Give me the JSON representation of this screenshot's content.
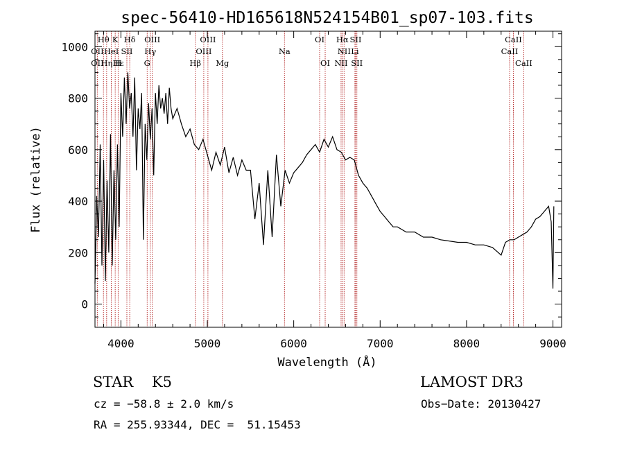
{
  "chart_data": {
    "type": "line",
    "title": "spec-56410-HD165618N524154B01_sp07-103.fits",
    "xlabel": "Wavelength (Å)",
    "ylabel": "Flux (relative)",
    "xlim": [
      3700,
      9100
    ],
    "ylim": [
      -90,
      1060
    ],
    "xticks": [
      4000,
      5000,
      6000,
      7000,
      8000,
      9000
    ],
    "xtick_labels": [
      "4000",
      "5000",
      "6000",
      "7000",
      "8000",
      "9000"
    ],
    "yticks": [
      0,
      200,
      400,
      600,
      800,
      1000
    ],
    "ytick_labels": [
      "0",
      "200",
      "400",
      "600",
      "800",
      "1000"
    ],
    "grid": false,
    "series": [
      {
        "color": "#000000",
        "x": [
          3700,
          3720,
          3740,
          3760,
          3780,
          3800,
          3820,
          3840,
          3860,
          3880,
          3900,
          3920,
          3940,
          3960,
          3980,
          4000,
          4020,
          4040,
          4060,
          4080,
          4100,
          4120,
          4140,
          4160,
          4180,
          4200,
          4220,
          4240,
          4260,
          4280,
          4300,
          4320,
          4340,
          4360,
          4380,
          4400,
          4420,
          4440,
          4460,
          4480,
          4500,
          4520,
          4540,
          4560,
          4580,
          4600,
          4650,
          4700,
          4750,
          4800,
          4850,
          4900,
          4950,
          5000,
          5050,
          5100,
          5150,
          5200,
          5250,
          5300,
          5350,
          5400,
          5450,
          5500,
          5550,
          5600,
          5650,
          5700,
          5750,
          5800,
          5850,
          5900,
          5950,
          6000,
          6050,
          6100,
          6150,
          6200,
          6250,
          6300,
          6350,
          6400,
          6450,
          6500,
          6550,
          6600,
          6650,
          6700,
          6750,
          6800,
          6850,
          6900,
          6950,
          7000,
          7050,
          7100,
          7150,
          7200,
          7250,
          7300,
          7400,
          7500,
          7600,
          7700,
          7800,
          7900,
          8000,
          8100,
          8200,
          8300,
          8400,
          8450,
          8500,
          8550,
          8600,
          8650,
          8700,
          8750,
          8800,
          8850,
          8900,
          8950,
          8980,
          9000,
          9010
        ],
        "y": [
          80,
          420,
          260,
          620,
          150,
          560,
          90,
          480,
          200,
          660,
          150,
          520,
          250,
          620,
          300,
          820,
          650,
          880,
          700,
          900,
          760,
          820,
          650,
          880,
          520,
          760,
          680,
          820,
          250,
          700,
          560,
          780,
          640,
          760,
          500,
          820,
          700,
          850,
          760,
          800,
          740,
          820,
          700,
          840,
          760,
          720,
          760,
          700,
          650,
          680,
          620,
          600,
          640,
          580,
          520,
          590,
          540,
          610,
          510,
          570,
          500,
          560,
          520,
          520,
          330,
          470,
          230,
          520,
          260,
          580,
          380,
          520,
          470,
          510,
          530,
          550,
          580,
          600,
          620,
          590,
          640,
          610,
          650,
          600,
          590,
          560,
          570,
          560,
          500,
          470,
          450,
          420,
          390,
          360,
          340,
          320,
          300,
          300,
          290,
          280,
          280,
          260,
          260,
          250,
          245,
          240,
          240,
          230,
          230,
          220,
          190,
          240,
          250,
          250,
          260,
          270,
          280,
          300,
          330,
          340,
          360,
          380,
          320,
          60,
          380
        ]
      }
    ],
    "annotations": [
      {
        "text": "Hθ",
        "x": 3798
      },
      {
        "text": "K",
        "x": 3934
      },
      {
        "text": "Hδ",
        "x": 4102
      },
      {
        "text": "OIII",
        "x": 4363
      },
      {
        "text": "OIII",
        "x": 5007
      },
      {
        "text": "OI",
        "x": 6300
      },
      {
        "text": "Hα",
        "x": 6563
      },
      {
        "text": "SII",
        "x": 6717
      },
      {
        "text": "CaII",
        "x": 8542
      },
      {
        "text": "OII",
        "x": 3727
      },
      {
        "text": "HeI",
        "x": 3889
      },
      {
        "text": "SII",
        "x": 4069
      },
      {
        "text": "Hγ",
        "x": 4340
      },
      {
        "text": "OIII",
        "x": 4959
      },
      {
        "text": "Na",
        "x": 5893
      },
      {
        "text": "NII",
        "x": 6583
      },
      {
        "text": "Li",
        "x": 6708
      },
      {
        "text": "CaII",
        "x": 8498
      },
      {
        "text": "OII",
        "x": 3727
      },
      {
        "text": "Hε",
        "x": 3970
      },
      {
        "text": "Hη",
        "x": 3835
      },
      {
        "text": "H",
        "x": 3968
      },
      {
        "text": "G",
        "x": 4304
      },
      {
        "text": "Hβ",
        "x": 4861
      },
      {
        "text": "Mg",
        "x": 5175
      },
      {
        "text": "OI",
        "x": 6364
      },
      {
        "text": "NII",
        "x": 6548
      },
      {
        "text": "SII",
        "x": 6731
      },
      {
        "text": "CaII",
        "x": 8662
      }
    ],
    "line_markers": [
      3727,
      3798,
      3835,
      3889,
      3934,
      3968,
      4069,
      4102,
      4304,
      4340,
      4363,
      4861,
      4959,
      5007,
      5175,
      5893,
      6300,
      6364,
      6548,
      6563,
      6583,
      6708,
      6717,
      6731,
      8498,
      8542,
      8662
    ]
  },
  "footer": {
    "object": "STAR    K5",
    "cz": "cz = −58.8 ± 2.0 km/s",
    "coords": "RA = 255.93344, DEC =  51.15453",
    "survey": "LAMOST DR3",
    "obs_date": "Obs−Date: 20130427"
  }
}
